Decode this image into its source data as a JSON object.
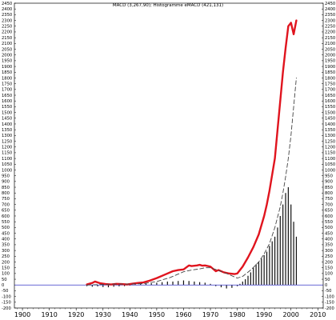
{
  "chart_data": {
    "type": "line",
    "title": "MACD (3,267,90); Histogramme eMACD (421,131)",
    "xlabel": "",
    "ylabel": "",
    "xlim": [
      1897,
      2012
    ],
    "ylim": [
      -200,
      2450
    ],
    "x_ticks": [
      "1900",
      "1910",
      "1920",
      "1930",
      "1940",
      "1950",
      "1960",
      "1970",
      "1980",
      "1990",
      "2000",
      "2010"
    ],
    "y_ticks": [
      -200,
      -150,
      -100,
      -50,
      0,
      50,
      100,
      150,
      200,
      250,
      300,
      350,
      400,
      450,
      500,
      550,
      600,
      650,
      700,
      750,
      800,
      850,
      900,
      950,
      1000,
      1050,
      1100,
      1150,
      1200,
      1250,
      1300,
      1350,
      1400,
      1450,
      1500,
      1550,
      1600,
      1650,
      1700,
      1750,
      1800,
      1850,
      1900,
      1950,
      2000,
      2050,
      2100,
      2150,
      2200,
      2250,
      2300,
      2350,
      2400,
      2450
    ],
    "zero_line": 0,
    "colors": {
      "macd": "#e0141e",
      "signal": "#444444",
      "histogram": "#111111",
      "zero_line": "#3838c8",
      "frame": "#000000"
    },
    "series": [
      {
        "style": "thick-red-line",
        "x": [
          1924,
          1926,
          1927,
          1929,
          1931,
          1933,
          1935,
          1937,
          1939,
          1941,
          1943,
          1945,
          1947,
          1950,
          1953,
          1956,
          1958,
          1960,
          1962,
          1963,
          1965,
          1966,
          1967,
          1968,
          1970,
          1972,
          1973,
          1975,
          1977,
          1979,
          1980,
          1982,
          1984,
          1986,
          1988,
          1990,
          1991,
          1992,
          1993,
          1994,
          1995,
          1996,
          1997,
          1998,
          1999,
          2000,
          2001,
          2002
        ],
        "values": [
          5,
          18,
          30,
          15,
          8,
          5,
          10,
          8,
          5,
          12,
          18,
          22,
          35,
          60,
          90,
          120,
          130,
          135,
          170,
          165,
          170,
          175,
          168,
          170,
          160,
          120,
          130,
          110,
          100,
          95,
          100,
          160,
          240,
          330,
          440,
          600,
          700,
          820,
          960,
          1100,
          1350,
          1600,
          1850,
          2060,
          2250,
          2280,
          2180,
          2300
        ]
      },
      {
        "style": "dashed-signal-line",
        "x": [
          1924,
          1930,
          1935,
          1940,
          1945,
          1950,
          1955,
          1958,
          1960,
          1963,
          1966,
          1968,
          1970,
          1972,
          1975,
          1978,
          1980,
          1982,
          1985,
          1988,
          1990,
          1992,
          1994,
          1996,
          1997,
          1998,
          1999,
          2000,
          2001,
          2002
        ],
        "values": [
          0,
          5,
          8,
          8,
          12,
          30,
          65,
          95,
          115,
          130,
          140,
          150,
          150,
          135,
          110,
          80,
          60,
          75,
          130,
          200,
          270,
          360,
          500,
          680,
          800,
          940,
          1100,
          1300,
          1550,
          1800
        ]
      }
    ],
    "histogram": {
      "x": [
        1924,
        1926,
        1928,
        1930,
        1932,
        1934,
        1936,
        1938,
        1940,
        1942,
        1944,
        1946,
        1948,
        1950,
        1952,
        1954,
        1956,
        1958,
        1960,
        1962,
        1964,
        1966,
        1968,
        1970,
        1972,
        1974,
        1976,
        1978,
        1980,
        1981,
        1982,
        1983,
        1984,
        1985,
        1986,
        1987,
        1988,
        1989,
        1990,
        1991,
        1992,
        1993,
        1994,
        1995,
        1996,
        1997,
        1998,
        1999,
        2000,
        2001,
        2002
      ],
      "values": [
        -10,
        -15,
        -12,
        -18,
        -20,
        -15,
        -12,
        -10,
        -5,
        5,
        10,
        12,
        15,
        20,
        25,
        30,
        30,
        35,
        40,
        35,
        30,
        25,
        20,
        10,
        -10,
        -20,
        -30,
        -25,
        -10,
        10,
        30,
        50,
        80,
        110,
        150,
        180,
        200,
        230,
        260,
        290,
        340,
        380,
        420,
        500,
        600,
        700,
        800,
        850,
        700,
        550,
        420
      ]
    }
  }
}
